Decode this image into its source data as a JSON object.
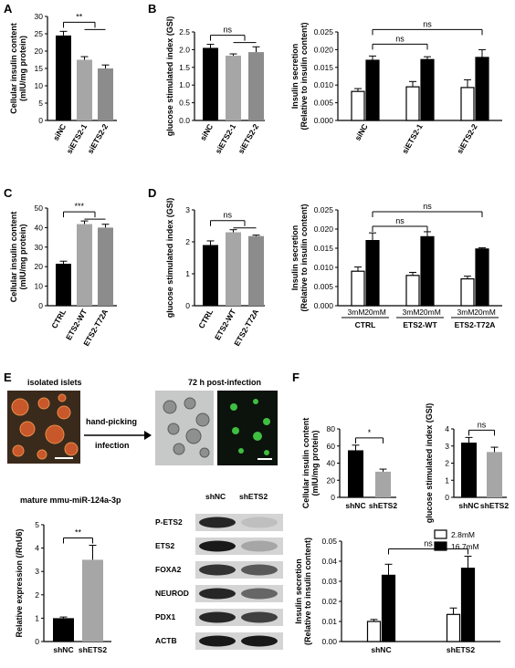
{
  "panels": [
    "A",
    "B",
    "C",
    "D",
    "E",
    "F"
  ],
  "colors": {
    "black": "#000000",
    "gray_light": "#a6a6a6",
    "gray_mid": "#8c8c8c",
    "white": "#ffffff"
  },
  "chart_data": [
    {
      "id": "A",
      "type": "bar",
      "categories": [
        "siNC",
        "siETS2-1",
        "siETS2-2"
      ],
      "values": [
        24.5,
        17.5,
        15
      ],
      "errors": [
        1.2,
        0.9,
        1.0
      ],
      "colors": [
        "#000000",
        "#a6a6a6",
        "#8c8c8c"
      ],
      "ylabel": [
        "Cellular insulin content",
        "(mIU/mg protein)"
      ],
      "ylim": [
        0,
        30
      ],
      "ticks": [
        0,
        5,
        10,
        15,
        20,
        25,
        30
      ],
      "sig": "**"
    },
    {
      "id": "B1",
      "type": "bar",
      "categories": [
        "siNC",
        "siETS2-1",
        "siETS2-2"
      ],
      "values": [
        2.05,
        1.83,
        1.93
      ],
      "errors": [
        0.1,
        0.05,
        0.15
      ],
      "colors": [
        "#000000",
        "#a6a6a6",
        "#8c8c8c"
      ],
      "ylabel": [
        "glucose stimulated index (GSI)"
      ],
      "ylim": [
        0,
        2.5
      ],
      "ticks": [
        "0.0",
        "0.5",
        "1.0",
        "1.5",
        "2.0",
        "2.5"
      ],
      "sig": "ns"
    },
    {
      "id": "B2",
      "type": "bar",
      "categories": [
        "siNC",
        "siETS2-1",
        "siETS2-2"
      ],
      "series": [
        {
          "values": [
            0.0082,
            0.0095,
            0.0093
          ],
          "errors": [
            0.0008,
            0.0015,
            0.0022
          ]
        },
        {
          "values": [
            0.017,
            0.0172,
            0.0178
          ],
          "errors": [
            0.0012,
            0.0008,
            0.0022
          ]
        }
      ],
      "ylabel": [
        "Insulin secretion",
        "(Relative to insulin content)"
      ],
      "ylim": [
        0,
        0.025
      ],
      "ticks": [
        "0.000",
        "0.005",
        "0.010",
        "0.015",
        "0.020",
        "0.025"
      ],
      "sig": [
        "ns",
        "ns"
      ]
    },
    {
      "id": "C",
      "type": "bar",
      "categories": [
        "CTRL",
        "ETS2-WT",
        "ETS2-T72A"
      ],
      "values": [
        21.5,
        41.8,
        40
      ],
      "errors": [
        1.3,
        1.6,
        1.7
      ],
      "colors": [
        "#000000",
        "#a6a6a6",
        "#8c8c8c"
      ],
      "ylabel": [
        "Cellular insulin content",
        "(mIU/mg protein)"
      ],
      "ylim": [
        0,
        50
      ],
      "ticks": [
        0,
        10,
        20,
        30,
        40,
        50
      ],
      "sig": "***"
    },
    {
      "id": "D1",
      "type": "bar",
      "categories": [
        "CTRL",
        "ETS2-WT",
        "ETS2-T72A"
      ],
      "values": [
        1.9,
        2.3,
        2.18
      ],
      "errors": [
        0.13,
        0.08,
        0.03
      ],
      "colors": [
        "#000000",
        "#a6a6a6",
        "#8c8c8c"
      ],
      "ylabel": [
        "glucose stimulated index (GSI)"
      ],
      "ylim": [
        0,
        3
      ],
      "ticks": [
        0,
        1,
        2,
        3
      ],
      "sig": "ns"
    },
    {
      "id": "D2",
      "type": "bar",
      "categories": [
        "CTRL",
        "ETS2-WT",
        "ETS2-T72A"
      ],
      "sublabels": [
        "3mM",
        "20mM"
      ],
      "series": [
        {
          "values": [
            0.009,
            0.0079,
            0.007
          ],
          "errors": [
            0.0011,
            0.0008,
            0.0007
          ]
        },
        {
          "values": [
            0.017,
            0.018,
            0.0148
          ],
          "errors": [
            0.002,
            0.0013,
            0.0003
          ]
        }
      ],
      "ylabel": [
        "Insulin secretion",
        "(Relative to insulin content)"
      ],
      "ylim": [
        0,
        0.025
      ],
      "ticks": [
        "0.000",
        "0.005",
        "0.010",
        "0.015",
        "0.020",
        "0.025"
      ],
      "sig": [
        "ns",
        "ns"
      ]
    },
    {
      "id": "E",
      "type": "bar",
      "title": "mature mmu-miR-124a-3p",
      "categories": [
        "shNC",
        "shETS2"
      ],
      "values": [
        1.0,
        3.5
      ],
      "errors": [
        0.05,
        0.62
      ],
      "colors": [
        "#000000",
        "#a6a6a6"
      ],
      "ylabel": [
        "Relative expression (/RnU6)"
      ],
      "ylim": [
        0,
        5
      ],
      "ticks": [
        0,
        1,
        2,
        3,
        4,
        5
      ],
      "sig": "**"
    },
    {
      "id": "F1",
      "type": "bar",
      "categories": [
        "shNC",
        "shETS2"
      ],
      "values": [
        55,
        30
      ],
      "errors": [
        6,
        3
      ],
      "colors": [
        "#000000",
        "#a6a6a6"
      ],
      "ylabel": [
        "Cellular insulin content",
        "(mIU/mg protein)"
      ],
      "ylim": [
        0,
        80
      ],
      "ticks": [
        0,
        20,
        40,
        60,
        80
      ],
      "sig": "*"
    },
    {
      "id": "F2",
      "type": "bar",
      "categories": [
        "shNC",
        "shETS2"
      ],
      "values": [
        3.2,
        2.65
      ],
      "errors": [
        0.3,
        0.28
      ],
      "colors": [
        "#000000",
        "#a6a6a6"
      ],
      "ylabel": [
        "glucose stimulated index (GSI)"
      ],
      "ylim": [
        0,
        4
      ],
      "ticks": [
        0,
        1,
        2,
        3,
        4
      ],
      "sig": "ns"
    },
    {
      "id": "F3",
      "type": "bar",
      "categories": [
        "shNC",
        "shETS2"
      ],
      "series": [
        {
          "name": "2.8mM",
          "values": [
            0.01,
            0.0135
          ],
          "errors": [
            0.001,
            0.0032
          ]
        },
        {
          "name": "16.7mM",
          "values": [
            0.033,
            0.0365
          ],
          "errors": [
            0.0055,
            0.006
          ]
        }
      ],
      "ylabel": [
        "Insulin secretion",
        "(Relative to insulin content)"
      ],
      "ylim": [
        0,
        0.05
      ],
      "ticks": [
        "0.00",
        "0.01",
        "0.02",
        "0.03",
        "0.04",
        "0.05"
      ],
      "sig": "ns",
      "legend": "top-right"
    }
  ],
  "panelE": {
    "isolated_label": "isolated islets",
    "post_label": "72 h post-infection",
    "arrow_top": "hand-picking",
    "arrow_bottom": "infection",
    "blot_cols": [
      "shNC",
      "shETS2"
    ],
    "blots": [
      "P-ETS2",
      "ETS2",
      "FOXA2",
      "NEUROD",
      "PDX1",
      "ACTB"
    ]
  }
}
